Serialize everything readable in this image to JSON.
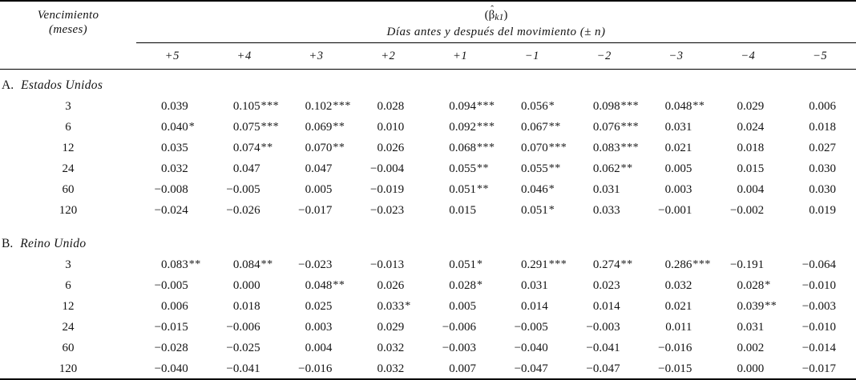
{
  "table": {
    "title_beta": {
      "pre": "(",
      "symbol": "β",
      "hat": "ˆ",
      "sub": "k1",
      "post": ")"
    },
    "subtitle": "Días antes y después del movimiento (± n)",
    "row_header": {
      "line1": "Vencimiento",
      "line2": "(meses)"
    },
    "columns": [
      "+5",
      "+4",
      "+3",
      "+2",
      "+1",
      "−1",
      "−2",
      "−3",
      "−4",
      "−5"
    ],
    "sections": [
      {
        "label_prefix": "A.",
        "label": "Estados Unidos",
        "rows": [
          {
            "maturity": "3",
            "values": [
              "0.039",
              "0.105***",
              "0.102***",
              "0.028",
              "0.094***",
              "0.056*",
              "0.098***",
              "0.048**",
              "0.029",
              "0.006"
            ]
          },
          {
            "maturity": "6",
            "values": [
              "0.040*",
              "0.075***",
              "0.069**",
              "0.010",
              "0.092***",
              "0.067**",
              "0.076***",
              "0.031",
              "0.024",
              "0.018"
            ]
          },
          {
            "maturity": "12",
            "values": [
              "0.035",
              "0.074**",
              "0.070**",
              "0.026",
              "0.068***",
              "0.070***",
              "0.083***",
              "0.021",
              "0.018",
              "0.027"
            ]
          },
          {
            "maturity": "24",
            "values": [
              "0.032",
              "0.047",
              "0.047",
              "−0.004",
              "0.055**",
              "0.055**",
              "0.062**",
              "0.005",
              "0.015",
              "0.030"
            ]
          },
          {
            "maturity": "60",
            "values": [
              "−0.008",
              "−0.005",
              "0.005",
              "−0.019",
              "0.051**",
              "0.046*",
              "0.031",
              "0.003",
              "0.004",
              "0.030"
            ]
          },
          {
            "maturity": "120",
            "values": [
              "−0.024",
              "−0.026",
              "−0.017",
              "−0.023",
              "0.015",
              "0.051*",
              "0.033",
              "−0.001",
              "−0.002",
              "0.019"
            ]
          }
        ]
      },
      {
        "label_prefix": "B.",
        "label": "Reino Unido",
        "rows": [
          {
            "maturity": "3",
            "values": [
              "0.083**",
              "0.084**",
              "−0.023",
              "−0.013",
              "0.051*",
              "0.291***",
              "0.274**",
              "0.286***",
              "−0.191",
              "−0.064"
            ]
          },
          {
            "maturity": "6",
            "values": [
              "−0.005",
              "0.000",
              "0.048**",
              "0.026",
              "0.028*",
              "0.031",
              "0.023",
              "0.032",
              "0.028*",
              "−0.010"
            ]
          },
          {
            "maturity": "12",
            "values": [
              "0.006",
              "0.018",
              "0.025",
              "0.033*",
              "0.005",
              "0.014",
              "0.014",
              "0.021",
              "0.039**",
              "−0.003"
            ]
          },
          {
            "maturity": "24",
            "values": [
              "−0.015",
              "−0.006",
              "0.003",
              "0.029",
              "−0.006",
              "−0.005",
              "−0.003",
              "0.011",
              "0.031",
              "−0.010"
            ]
          },
          {
            "maturity": "60",
            "values": [
              "−0.028",
              "−0.025",
              "0.004",
              "0.032",
              "−0.003",
              "−0.040",
              "−0.041",
              "−0.016",
              "0.002",
              "−0.014"
            ]
          },
          {
            "maturity": "120",
            "values": [
              "−0.040",
              "−0.041",
              "−0.016",
              "0.032",
              "0.007",
              "−0.047",
              "−0.047",
              "−0.015",
              "0.000",
              "−0.017"
            ]
          }
        ]
      }
    ]
  }
}
